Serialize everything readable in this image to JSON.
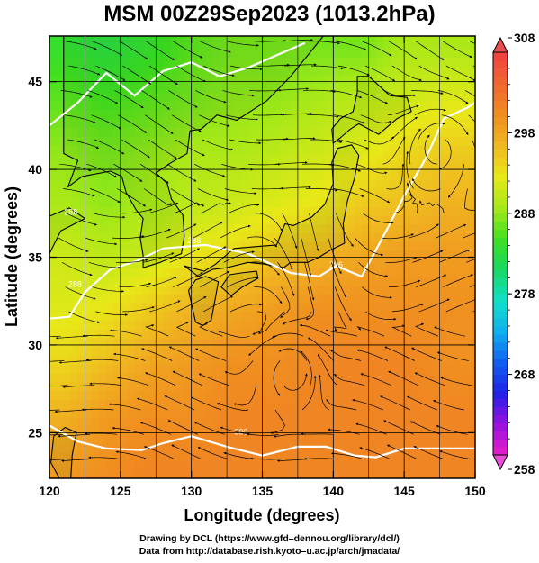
{
  "chart_data": {
    "type": "heatmap",
    "title": "MSM 00Z29Sep2023 (1013.2hPa)",
    "xlabel": "Longitude (degrees)",
    "ylabel": "Latitude  (degrees)",
    "xlim": [
      120,
      150
    ],
    "ylim": [
      22.4,
      47.6
    ],
    "x_ticks": [
      120,
      125,
      130,
      135,
      140,
      145,
      150
    ],
    "y_ticks": [
      25,
      30,
      35,
      40,
      45
    ],
    "grid": true,
    "colorbar": {
      "range": [
        258,
        308
      ],
      "ticks": [
        258,
        268,
        278,
        288,
        298,
        308
      ],
      "extend": "both",
      "colors": [
        "#e81ec8",
        "#9a10e0",
        "#2020e8",
        "#1060f0",
        "#10b0f0",
        "#10e0c8",
        "#18d860",
        "#40e020",
        "#a8e818",
        "#e8e818",
        "#f0b820",
        "#f08c20",
        "#f06830",
        "#f04040"
      ]
    },
    "field": {
      "rows_lat": [
        47,
        44,
        41,
        38,
        35,
        32,
        29,
        26,
        23
      ],
      "cols_lon": [
        121,
        124,
        127,
        130,
        133,
        136,
        139,
        142,
        145,
        148
      ],
      "values": [
        [
          284,
          283,
          284,
          286,
          287,
          287,
          287,
          287,
          289,
          289
        ],
        [
          286,
          285,
          286,
          287,
          288,
          288,
          289,
          290,
          291,
          292
        ],
        [
          288,
          287,
          288,
          289,
          289,
          290,
          291,
          292,
          294,
          295
        ],
        [
          289,
          288,
          289,
          290,
          291,
          292,
          293,
          295,
          296,
          297
        ],
        [
          291,
          290,
          291,
          293,
          294,
          296,
          297,
          298,
          299,
          299
        ],
        [
          292,
          293,
          295,
          297,
          298,
          299,
          300,
          300,
          300,
          300
        ],
        [
          294,
          296,
          298,
          299,
          300,
          300,
          301,
          301,
          301,
          300
        ],
        [
          297,
          299,
          300,
          300,
          301,
          301,
          301,
          301,
          301,
          301
        ],
        [
          299,
          300,
          301,
          301,
          301,
          301,
          301,
          301,
          301,
          301
        ]
      ]
    },
    "contour_labels": [
      "288",
      "288",
      "288",
      "296",
      "300"
    ]
  },
  "credit": {
    "line1": "Drawing by DCL (https://www.gfd–dennou.org/library/dcl/)",
    "line2": "Data from http://database.rish.kyoto–u.ac.jp/arch/jmadata/"
  }
}
